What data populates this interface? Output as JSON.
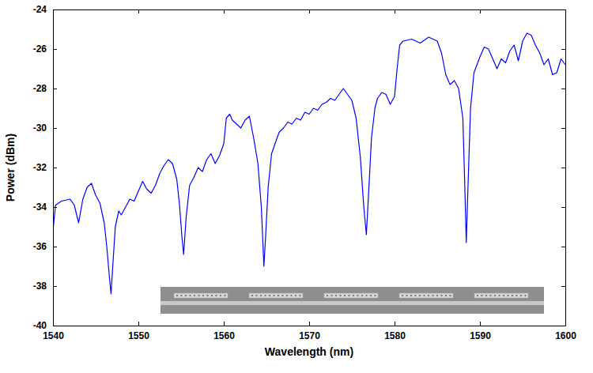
{
  "chart_data": {
    "type": "line",
    "x_label": "Wavelength (nm)",
    "y_label": "Power (dBm)",
    "color": "#0000ff",
    "grid": false,
    "xlim": [
      1540,
      1600
    ],
    "ylim": [
      -40,
      -24
    ],
    "xticks": [
      1540,
      1550,
      1560,
      1570,
      1580,
      1590,
      1600
    ],
    "yticks": [
      -40,
      -38,
      -36,
      -34,
      -32,
      -30,
      -28,
      -26,
      -24
    ],
    "x": [
      1540,
      1540.3,
      1541,
      1542,
      1542.5,
      1543,
      1543.5,
      1544,
      1544.5,
      1545,
      1545.5,
      1546,
      1546.3,
      1546.6,
      1546.8,
      1547.0,
      1547.3,
      1547.7,
      1548,
      1548.5,
      1549,
      1549.5,
      1550,
      1550.5,
      1551,
      1551.5,
      1552,
      1552.5,
      1553,
      1553.5,
      1554,
      1554.5,
      1554.8,
      1555.1,
      1555.3,
      1555.6,
      1556,
      1556.5,
      1557,
      1557.5,
      1558,
      1558.5,
      1559,
      1559.5,
      1560,
      1560.3,
      1560.7,
      1561,
      1561.5,
      1562,
      1562.5,
      1563,
      1563.5,
      1564,
      1564.4,
      1564.7,
      1564.9,
      1565.2,
      1565.6,
      1566,
      1566.5,
      1567,
      1567.5,
      1568,
      1568.5,
      1569,
      1569.5,
      1570,
      1570.5,
      1571,
      1571.5,
      1572,
      1572.5,
      1573,
      1573.5,
      1574,
      1574.5,
      1575,
      1575.5,
      1576,
      1576.4,
      1576.7,
      1577,
      1577.3,
      1577.7,
      1578,
      1578.5,
      1579,
      1579.5,
      1580,
      1580.3,
      1580.6,
      1581,
      1582,
      1583,
      1584,
      1585,
      1585.5,
      1586,
      1586.5,
      1587,
      1587.5,
      1588,
      1588.2,
      1588.4,
      1588.6,
      1588.9,
      1589.3,
      1590,
      1590.5,
      1591,
      1591.5,
      1592,
      1592.5,
      1593,
      1593.5,
      1594,
      1594.5,
      1595,
      1595.5,
      1596,
      1596.5,
      1597,
      1597.5,
      1598,
      1598.5,
      1599,
      1599.5,
      1600
    ],
    "values": [
      -35.2,
      -33.9,
      -33.7,
      -33.6,
      -33.9,
      -34.8,
      -33.6,
      -33.0,
      -32.8,
      -33.4,
      -33.8,
      -34.8,
      -36.0,
      -37.5,
      -38.4,
      -37.0,
      -35.0,
      -34.2,
      -34.4,
      -34.0,
      -33.6,
      -33.7,
      -33.2,
      -32.7,
      -33.1,
      -33.3,
      -32.9,
      -32.3,
      -31.9,
      -31.6,
      -31.8,
      -32.6,
      -33.8,
      -35.5,
      -36.4,
      -34.5,
      -32.9,
      -32.5,
      -32.0,
      -32.2,
      -31.6,
      -31.3,
      -31.8,
      -31.4,
      -30.8,
      -29.5,
      -29.3,
      -29.6,
      -29.8,
      -30.0,
      -29.6,
      -29.4,
      -30.5,
      -31.8,
      -34.0,
      -37.0,
      -35.5,
      -33.0,
      -31.3,
      -30.8,
      -30.2,
      -30.0,
      -29.7,
      -29.8,
      -29.5,
      -29.6,
      -29.2,
      -29.3,
      -29.0,
      -29.1,
      -28.8,
      -28.7,
      -28.5,
      -28.6,
      -28.3,
      -28.0,
      -28.3,
      -28.6,
      -29.5,
      -31.5,
      -34.0,
      -35.4,
      -33.0,
      -30.5,
      -29.0,
      -28.5,
      -28.2,
      -28.3,
      -28.8,
      -28.4,
      -27.0,
      -25.8,
      -25.6,
      -25.5,
      -25.7,
      -25.4,
      -25.6,
      -26.2,
      -27.3,
      -27.8,
      -27.6,
      -28.0,
      -29.5,
      -32.5,
      -35.8,
      -33.0,
      -29.0,
      -27.2,
      -26.4,
      -25.9,
      -26.0,
      -26.5,
      -27.0,
      -26.5,
      -26.7,
      -26.1,
      -25.8,
      -26.6,
      -25.6,
      -25.2,
      -25.3,
      -25.8,
      -26.2,
      -26.8,
      -26.5,
      -27.3,
      -27.2,
      -26.5,
      -26.8
    ]
  }
}
